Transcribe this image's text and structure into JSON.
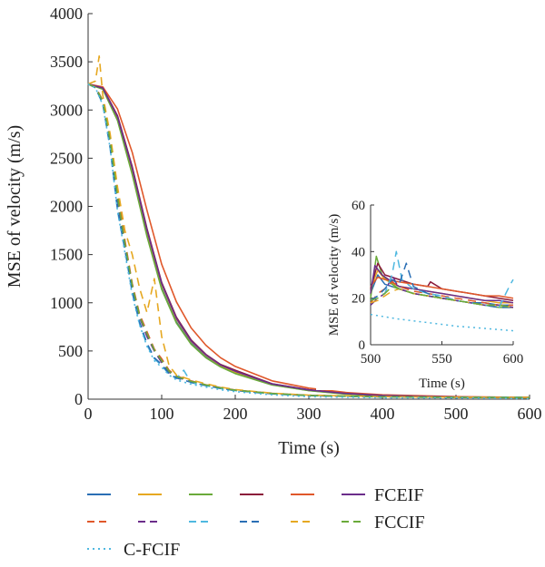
{
  "chart_data": [
    {
      "type": "line",
      "title": "",
      "xlabel": "Time (s)",
      "ylabel": "MSE of velocity (m/s)",
      "xlim": [
        0,
        600
      ],
      "ylim": [
        0,
        4000
      ],
      "xticks": [
        0,
        100,
        200,
        300,
        400,
        500,
        600
      ],
      "yticks": [
        0,
        500,
        1000,
        1500,
        2000,
        2500,
        3000,
        3500,
        4000
      ],
      "grid": false,
      "legend_position": "bottom",
      "series": [
        {
          "name": "",
          "group": "FCEIF",
          "style": "solid",
          "color": "#2a6fb5",
          "x": [
            0,
            20,
            40,
            60,
            80,
            100,
            120,
            140,
            160,
            180,
            200,
            250,
            300,
            350,
            400,
            500,
            600
          ],
          "y": [
            3270,
            3220,
            2900,
            2350,
            1700,
            1150,
            800,
            580,
            440,
            340,
            270,
            150,
            90,
            55,
            35,
            20,
            15
          ]
        },
        {
          "name": "",
          "group": "FCEIF",
          "style": "solid",
          "color": "#e6a821",
          "x": [
            0,
            20,
            40,
            60,
            80,
            100,
            120,
            140,
            160,
            180,
            200,
            250,
            300,
            350,
            400,
            500,
            600
          ],
          "y": [
            3270,
            3225,
            2920,
            2380,
            1740,
            1190,
            830,
            600,
            455,
            350,
            280,
            155,
            95,
            58,
            38,
            22,
            16
          ]
        },
        {
          "name": "",
          "group": "FCEIF",
          "style": "solid",
          "color": "#6aaa3a",
          "x": [
            0,
            20,
            40,
            60,
            80,
            100,
            120,
            140,
            160,
            180,
            200,
            250,
            300,
            350,
            400,
            500,
            600
          ],
          "y": [
            3270,
            3215,
            2890,
            2330,
            1690,
            1140,
            790,
            570,
            430,
            335,
            265,
            148,
            88,
            53,
            34,
            19,
            15
          ]
        },
        {
          "name": "",
          "group": "FCEIF",
          "style": "solid",
          "color": "#8b1a3a",
          "x": [
            0,
            20,
            40,
            60,
            80,
            100,
            120,
            140,
            160,
            180,
            200,
            250,
            300,
            350,
            400,
            500,
            600
          ],
          "y": [
            3270,
            3230,
            2940,
            2410,
            1770,
            1210,
            850,
            615,
            465,
            360,
            300,
            160,
            98,
            60,
            40,
            23,
            17
          ]
        },
        {
          "name": "",
          "group": "FCEIF",
          "style": "solid",
          "color": "#e0582a",
          "x": [
            0,
            20,
            40,
            60,
            80,
            100,
            120,
            140,
            160,
            180,
            200,
            250,
            300,
            350,
            400,
            500,
            600
          ],
          "y": [
            3270,
            3240,
            3010,
            2560,
            1960,
            1400,
            1010,
            740,
            560,
            430,
            340,
            190,
            115,
            70,
            45,
            26,
            19
          ]
        },
        {
          "name": "FCEIF",
          "group": "FCEIF",
          "style": "solid",
          "color": "#6b2d8a",
          "x": [
            0,
            20,
            40,
            60,
            80,
            100,
            120,
            140,
            160,
            180,
            200,
            250,
            300,
            350,
            400,
            500,
            600
          ],
          "y": [
            3270,
            3228,
            2930,
            2395,
            1755,
            1200,
            840,
            605,
            460,
            355,
            290,
            158,
            96,
            59,
            39,
            22,
            17
          ]
        },
        {
          "name": "",
          "group": "FCCIF",
          "style": "dashed",
          "color": "#e0582a",
          "x": [
            0,
            10,
            20,
            30,
            40,
            50,
            60,
            70,
            80,
            90,
            100,
            110,
            120,
            140,
            160,
            180,
            200,
            250,
            300,
            400,
            500,
            600
          ],
          "y": [
            3270,
            3240,
            3100,
            2700,
            2150,
            1650,
            1200,
            880,
            700,
            520,
            420,
            300,
            240,
            190,
            150,
            120,
            95,
            60,
            40,
            25,
            20,
            18
          ]
        },
        {
          "name": "",
          "group": "FCCIF",
          "style": "dashed",
          "color": "#6b2d8a",
          "x": [
            0,
            10,
            20,
            30,
            40,
            50,
            60,
            70,
            80,
            90,
            100,
            110,
            120,
            140,
            160,
            180,
            200,
            250,
            300,
            400,
            500,
            600
          ],
          "y": [
            3270,
            3235,
            3080,
            2650,
            2050,
            1580,
            1150,
            850,
            650,
            500,
            380,
            280,
            230,
            180,
            145,
            115,
            92,
            58,
            38,
            24,
            19,
            17
          ]
        },
        {
          "name": "",
          "group": "FCCIF",
          "style": "dashed",
          "color": "#4fb8e0",
          "x": [
            0,
            10,
            20,
            30,
            40,
            50,
            60,
            70,
            80,
            90,
            100,
            110,
            120,
            130,
            140,
            160,
            180,
            200,
            250,
            300,
            400,
            500,
            600
          ],
          "y": [
            3270,
            3230,
            3060,
            2600,
            1950,
            1550,
            1100,
            780,
            560,
            420,
            350,
            260,
            215,
            300,
            170,
            140,
            110,
            88,
            55,
            36,
            23,
            18,
            20
          ]
        },
        {
          "name": "",
          "group": "FCCIF",
          "style": "dashed",
          "color": "#2a6fb5",
          "x": [
            0,
            10,
            20,
            30,
            40,
            50,
            60,
            70,
            80,
            90,
            100,
            110,
            120,
            140,
            160,
            180,
            200,
            250,
            300,
            400,
            500,
            600
          ],
          "y": [
            3270,
            3232,
            3070,
            2620,
            1980,
            1560,
            1120,
            800,
            580,
            430,
            360,
            265,
            220,
            175,
            142,
            112,
            90,
            56,
            37,
            23,
            18,
            17
          ]
        },
        {
          "name": "",
          "group": "FCCIF",
          "style": "dashed",
          "color": "#e6a821",
          "x": [
            0,
            10,
            15,
            20,
            30,
            40,
            50,
            60,
            70,
            80,
            90,
            100,
            110,
            120,
            140,
            160,
            180,
            200,
            250,
            300,
            400,
            500,
            600
          ],
          "y": [
            3270,
            3300,
            3560,
            3150,
            2750,
            2200,
            1750,
            1500,
            1150,
            900,
            1250,
            650,
            350,
            250,
            200,
            160,
            125,
            100,
            62,
            42,
            26,
            20,
            18
          ]
        },
        {
          "name": "FCCIF",
          "group": "FCCIF",
          "style": "dashed",
          "color": "#6aaa3a",
          "x": [
            0,
            10,
            20,
            30,
            40,
            50,
            60,
            70,
            80,
            90,
            100,
            110,
            120,
            140,
            160,
            180,
            200,
            250,
            300,
            400,
            500,
            600
          ],
          "y": [
            3270,
            3236,
            3090,
            2680,
            2100,
            1620,
            1180,
            860,
            680,
            510,
            400,
            290,
            235,
            185,
            148,
            118,
            93,
            59,
            39,
            24,
            19,
            17
          ]
        },
        {
          "name": "C-FCIF",
          "group": "C-FCIF",
          "style": "dotted",
          "color": "#4fb8e0",
          "x": [
            0,
            10,
            20,
            30,
            40,
            50,
            60,
            70,
            80,
            90,
            100,
            110,
            120,
            140,
            160,
            180,
            200,
            250,
            300,
            400,
            500,
            600
          ],
          "y": [
            3270,
            3230,
            3050,
            2600,
            1950,
            1520,
            1080,
            770,
            550,
            400,
            330,
            250,
            200,
            155,
            125,
            98,
            78,
            45,
            25,
            15,
            12,
            6
          ]
        }
      ]
    },
    {
      "type": "line",
      "title": "",
      "xlabel": "Time (s)",
      "ylabel": "MSE of velocity (m/s)",
      "xlim": [
        500,
        600
      ],
      "ylim": [
        0,
        60
      ],
      "xticks": [
        500,
        550,
        600
      ],
      "yticks": [
        0,
        20,
        40,
        60
      ],
      "grid": false,
      "series": [
        {
          "color": "#2a6fb5",
          "style": "solid",
          "x": [
            500,
            505,
            510,
            520,
            530,
            540,
            550,
            560,
            570,
            580,
            590,
            600
          ],
          "y": [
            22,
            30,
            26,
            24,
            22,
            21,
            20,
            19,
            18,
            18,
            17,
            17
          ]
        },
        {
          "color": "#e6a821",
          "style": "solid",
          "x": [
            500,
            505,
            510,
            520,
            530,
            540,
            550,
            560,
            570,
            580,
            590,
            600
          ],
          "y": [
            24,
            32,
            28,
            25,
            24,
            23,
            22,
            21,
            20,
            19,
            18,
            18
          ]
        },
        {
          "color": "#6aaa3a",
          "style": "solid",
          "x": [
            500,
            504,
            508,
            515,
            520,
            530,
            540,
            550,
            560,
            570,
            580,
            590,
            600
          ],
          "y": [
            20,
            38,
            30,
            26,
            24,
            22,
            21,
            20,
            19,
            18,
            17,
            16,
            16
          ]
        },
        {
          "color": "#8b1a3a",
          "style": "solid",
          "x": [
            500,
            505,
            510,
            520,
            530,
            540,
            542,
            550,
            560,
            570,
            580,
            590,
            600
          ],
          "y": [
            24,
            35,
            30,
            28,
            26,
            25,
            27,
            24,
            23,
            22,
            21,
            20,
            19
          ]
        },
        {
          "color": "#e0582a",
          "style": "solid",
          "x": [
            500,
            505,
            510,
            520,
            530,
            540,
            550,
            560,
            570,
            580,
            590,
            600
          ],
          "y": [
            25,
            29,
            28,
            27,
            26,
            25,
            24,
            23,
            22,
            21,
            21,
            20
          ]
        },
        {
          "color": "#6b2d8a",
          "style": "solid",
          "x": [
            500,
            503,
            508,
            515,
            520,
            530,
            540,
            550,
            560,
            570,
            580,
            590,
            600
          ],
          "y": [
            22,
            34,
            30,
            27,
            25,
            24,
            23,
            22,
            21,
            20,
            19,
            19,
            18
          ]
        },
        {
          "color": "#e0582a",
          "style": "dashed",
          "x": [
            500,
            505,
            510,
            515,
            520,
            530,
            540,
            550,
            560,
            570,
            580,
            590,
            600
          ],
          "y": [
            18,
            22,
            24,
            27,
            25,
            23,
            22,
            21,
            20,
            19,
            18,
            17,
            17
          ]
        },
        {
          "color": "#6b2d8a",
          "style": "dashed",
          "x": [
            500,
            505,
            510,
            515,
            520,
            530,
            540,
            550,
            560,
            570,
            580,
            590,
            600
          ],
          "y": [
            17,
            20,
            22,
            30,
            24,
            22,
            21,
            20,
            19,
            18,
            17,
            17,
            16
          ]
        },
        {
          "color": "#4fb8e0",
          "style": "dashed",
          "x": [
            500,
            505,
            510,
            515,
            518,
            522,
            530,
            540,
            550,
            560,
            570,
            580,
            590,
            598,
            600
          ],
          "y": [
            19,
            21,
            22,
            30,
            40,
            28,
            24,
            22,
            21,
            19,
            18,
            17,
            16,
            26,
            28
          ]
        },
        {
          "color": "#2a6fb5",
          "style": "dashed",
          "x": [
            500,
            505,
            510,
            515,
            520,
            525,
            530,
            540,
            550,
            560,
            570,
            580,
            590,
            600
          ],
          "y": [
            19,
            21,
            24,
            28,
            26,
            35,
            25,
            22,
            20,
            19,
            18,
            17,
            16,
            16
          ]
        },
        {
          "color": "#e6a821",
          "style": "dashed",
          "x": [
            500,
            505,
            510,
            515,
            520,
            530,
            540,
            550,
            560,
            570,
            580,
            590,
            600
          ],
          "y": [
            18,
            19,
            21,
            23,
            24,
            22,
            21,
            20,
            19,
            18,
            17,
            17,
            16
          ]
        },
        {
          "color": "#6aaa3a",
          "style": "dashed",
          "x": [
            500,
            505,
            510,
            515,
            520,
            530,
            540,
            550,
            560,
            570,
            580,
            590,
            600
          ],
          "y": [
            19,
            20,
            22,
            25,
            24,
            22,
            21,
            20,
            19,
            18,
            17,
            17,
            16
          ]
        },
        {
          "color": "#4fb8e0",
          "style": "dotted",
          "x": [
            500,
            520,
            540,
            560,
            580,
            600
          ],
          "y": [
            13,
            11,
            9.5,
            8,
            7,
            6
          ]
        }
      ]
    }
  ]
}
